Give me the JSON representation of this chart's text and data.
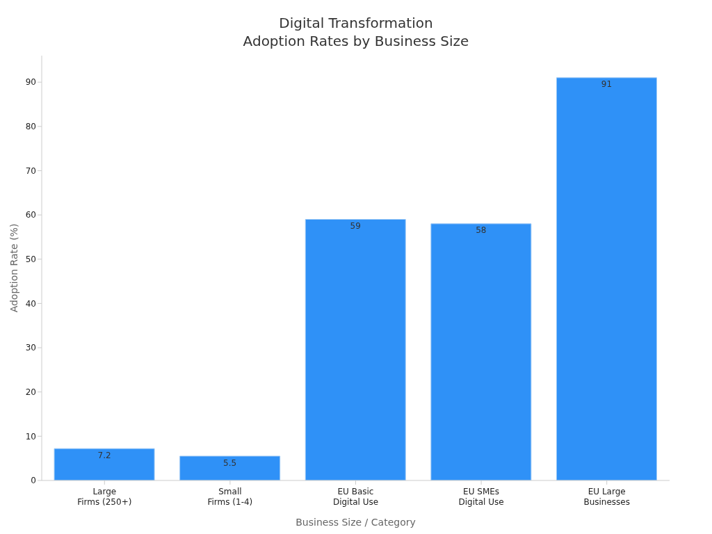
{
  "chart_data": {
    "type": "bar",
    "title": "Digital Transformation\nAdoption Rates by Business Size",
    "xlabel": "Business Size / Category",
    "ylabel": "Adoption Rate (%)",
    "categories": [
      "Large\nFirms (250+)",
      "Small\nFirms (1-4)",
      "EU Basic\nDigital Use",
      "EU SMEs\nDigital Use",
      "EU Large\nBusinesses"
    ],
    "values": [
      7.2,
      5.5,
      59,
      58,
      91
    ],
    "color": "#2f91f7",
    "ylim": [
      0,
      96
    ],
    "yticks": [
      0,
      10,
      20,
      30,
      40,
      50,
      60,
      70,
      80,
      90
    ],
    "grid": false,
    "data_labels": true
  }
}
